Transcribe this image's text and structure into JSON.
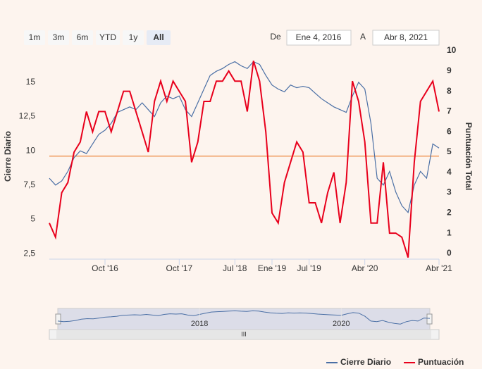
{
  "chart_data": {
    "type": "line",
    "range_selector": {
      "buttons": [
        "1m",
        "3m",
        "6m",
        "YTD",
        "1y",
        "All"
      ],
      "selected": 5,
      "from_label": "De",
      "from_date": "Ene 4, 2016",
      "to_label": "A",
      "to_date": "Abr 8, 2021"
    },
    "y_label": "Cierre Diario",
    "y2_label": "Puntuación Total",
    "x": [
      "2016-01",
      "2016-02",
      "2016-03",
      "2016-04",
      "2016-05",
      "2016-06",
      "2016-07",
      "2016-08",
      "2016-09",
      "2016-10",
      "2016-11",
      "2016-12",
      "2017-01",
      "2017-02",
      "2017-03",
      "2017-04",
      "2017-05",
      "2017-06",
      "2017-07",
      "2017-08",
      "2017-09",
      "2017-10",
      "2017-11",
      "2017-12",
      "2018-01",
      "2018-02",
      "2018-03",
      "2018-04",
      "2018-05",
      "2018-06",
      "2018-07",
      "2018-08",
      "2018-09",
      "2018-10",
      "2018-11",
      "2018-12",
      "2019-01",
      "2019-02",
      "2019-03",
      "2019-04",
      "2019-05",
      "2019-06",
      "2019-07",
      "2019-08",
      "2019-09",
      "2019-10",
      "2019-11",
      "2019-12",
      "2020-01",
      "2020-02",
      "2020-03",
      "2020-04",
      "2020-05",
      "2020-06",
      "2020-07",
      "2020-08",
      "2020-09",
      "2020-10",
      "2020-11",
      "2020-12",
      "2021-01",
      "2021-02",
      "2021-03",
      "2021-04"
    ],
    "series": [
      {
        "name": "Cierre Diario",
        "color": "#4a6fa5",
        "axis": "y",
        "values": [
          8.0,
          7.5,
          7.8,
          8.5,
          9.5,
          10.0,
          9.8,
          10.5,
          11.2,
          11.5,
          12.0,
          12.8,
          13.0,
          13.2,
          13.0,
          13.5,
          13.0,
          12.5,
          13.5,
          14.0,
          13.8,
          14.0,
          13.0,
          12.5,
          13.5,
          14.5,
          15.5,
          15.8,
          16.0,
          16.3,
          16.5,
          16.2,
          16.0,
          16.5,
          16.3,
          15.5,
          14.8,
          14.5,
          14.3,
          14.8,
          14.6,
          14.7,
          14.6,
          14.2,
          13.8,
          13.5,
          13.2,
          13.0,
          12.8,
          14.0,
          15.0,
          14.5,
          12.0,
          8.0,
          7.5,
          8.5,
          7.0,
          6.0,
          5.5,
          7.5,
          8.5,
          8.0,
          10.5,
          10.2
        ]
      },
      {
        "name": "Puntuación",
        "color": "#e8001c",
        "axis": "y2",
        "values": [
          1.5,
          0.8,
          3,
          3.5,
          5,
          5.5,
          7,
          6,
          7,
          7,
          6,
          7,
          8,
          8,
          7,
          6,
          5,
          7.5,
          8.5,
          7.5,
          8.5,
          8,
          7.5,
          4.5,
          5.5,
          7.5,
          7.5,
          8.5,
          8.5,
          9,
          8.5,
          8.5,
          7,
          9.5,
          8.5,
          6,
          2,
          1.5,
          3.5,
          4.5,
          5.5,
          5,
          2.5,
          2.5,
          1.5,
          3,
          4,
          1.5,
          3.5,
          8.5,
          7.5,
          5.5,
          1.5,
          1.5,
          4.5,
          1,
          1,
          0.8,
          -0.2,
          4.5,
          7.5,
          8,
          8.5,
          7
        ]
      }
    ],
    "plot_line": {
      "axis": "y2",
      "value": 4.8,
      "color": "#f4b183"
    },
    "xlim": [
      "2016-01",
      "2021-04"
    ],
    "xticks": [
      {
        "value": "2016-10",
        "label": "Oct '16"
      },
      {
        "value": "2017-10",
        "label": "Oct '17"
      },
      {
        "value": "2018-07",
        "label": "Jul '18"
      },
      {
        "value": "2019-01",
        "label": "Ene '19"
      },
      {
        "value": "2019-07",
        "label": "Jul '19"
      },
      {
        "value": "2020-04",
        "label": "Abr '20"
      },
      {
        "value": "2021-04",
        "label": "Abr '21"
      }
    ],
    "ylim": [
      2.1,
      17.3
    ],
    "yticks": [
      {
        "value": 2.5,
        "label": "2,5"
      },
      5,
      {
        "value": 7.5,
        "label": "7,5"
      },
      10,
      {
        "value": 12.5,
        "label": "12,5"
      },
      15
    ],
    "y2lim": [
      -0.28,
      10
    ],
    "y2ticks": [
      0,
      1,
      2,
      3,
      4,
      5,
      6,
      7,
      8,
      9,
      10
    ],
    "navigator_ticks": [
      {
        "value": "2018-01",
        "label": "2018"
      },
      {
        "value": "2020-01",
        "label": "2020"
      }
    ],
    "legend": "bottom-right"
  }
}
